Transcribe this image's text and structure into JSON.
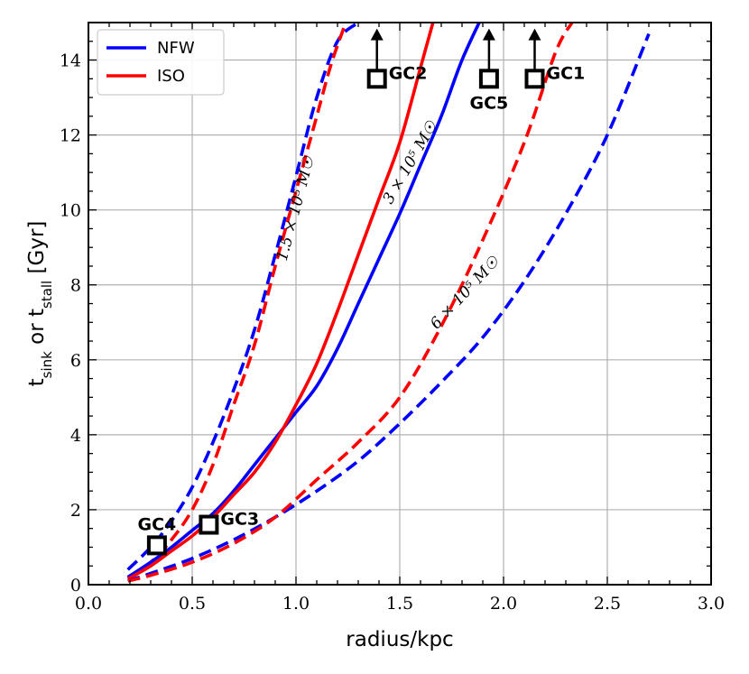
{
  "chart_data": {
    "type": "line",
    "xlabel": "radius/kpc",
    "ylabel_main": "t",
    "ylabel_sub1": "sink",
    "ylabel_mid": " or t",
    "ylabel_sub2": "stall",
    "ylabel_unit": " [Gyr]",
    "xlim": [
      0.0,
      3.0
    ],
    "ylim": [
      0,
      15
    ],
    "xticks": [
      "0.0",
      "0.5",
      "1.0",
      "1.5",
      "2.0",
      "2.5",
      "3.0"
    ],
    "yticks": [
      "0",
      "2",
      "4",
      "6",
      "8",
      "10",
      "12",
      "14"
    ],
    "grid": true,
    "legend": {
      "position": "top-left",
      "entries": [
        {
          "name": "NFW",
          "color": "#0000ff"
        },
        {
          "name": "ISO",
          "color": "#ff0000"
        }
      ]
    },
    "series": [
      {
        "name": "NFW 1.5e5 Msun",
        "model": "NFW",
        "mass": "1.5e5",
        "style": "dashed",
        "color": "#0000ff",
        "x": [
          0.19,
          0.3,
          0.4,
          0.5,
          0.6,
          0.7,
          0.8,
          0.9,
          1.0,
          1.1,
          1.2,
          1.3
        ],
        "y": [
          0.4,
          1.0,
          1.7,
          2.6,
          3.8,
          5.2,
          6.8,
          8.8,
          10.9,
          13.0,
          14.5,
          15.0
        ]
      },
      {
        "name": "ISO 1.5e5 Msun",
        "model": "ISO",
        "mass": "1.5e5",
        "style": "dashed",
        "color": "#ff0000",
        "x": [
          0.19,
          0.3,
          0.4,
          0.5,
          0.6,
          0.7,
          0.8,
          0.9,
          1.0,
          1.1,
          1.17,
          1.24
        ],
        "y": [
          0.2,
          0.6,
          1.2,
          2.0,
          3.2,
          4.8,
          6.4,
          8.5,
          10.5,
          12.5,
          13.9,
          15.0
        ]
      },
      {
        "name": "NFW 3e5 Msun",
        "model": "NFW",
        "mass": "3e5",
        "style": "solid",
        "color": "#0000ff",
        "x": [
          0.19,
          0.3,
          0.4,
          0.5,
          0.6,
          0.7,
          0.8,
          0.9,
          1.0,
          1.1,
          1.2,
          1.3,
          1.4,
          1.5,
          1.6,
          1.7,
          1.8,
          1.9
        ],
        "y": [
          0.2,
          0.6,
          1.0,
          1.45,
          1.9,
          2.5,
          3.2,
          3.9,
          4.6,
          5.3,
          6.3,
          7.5,
          8.7,
          9.9,
          11.2,
          12.5,
          14.0,
          15.2
        ]
      },
      {
        "name": "ISO 3e5 Msun",
        "model": "ISO",
        "mass": "3e5",
        "style": "solid",
        "color": "#ff0000",
        "x": [
          0.19,
          0.3,
          0.4,
          0.5,
          0.6,
          0.7,
          0.8,
          0.9,
          1.0,
          1.1,
          1.2,
          1.3,
          1.4,
          1.5,
          1.6,
          1.66
        ],
        "y": [
          0.15,
          0.5,
          0.9,
          1.3,
          1.8,
          2.4,
          3.0,
          3.8,
          4.8,
          5.9,
          7.3,
          8.8,
          10.3,
          11.8,
          13.8,
          15.0
        ]
      },
      {
        "name": "NFW 6e5 Msun",
        "model": "NFW",
        "mass": "6e5",
        "style": "dashed",
        "color": "#0000ff",
        "x": [
          0.19,
          0.3,
          0.5,
          0.7,
          0.9,
          1.1,
          1.3,
          1.5,
          1.7,
          1.9,
          2.1,
          2.3,
          2.5,
          2.7
        ],
        "y": [
          0.1,
          0.3,
          0.7,
          1.2,
          1.8,
          2.5,
          3.3,
          4.3,
          5.4,
          6.6,
          8.1,
          9.9,
          12.0,
          14.7
        ]
      },
      {
        "name": "ISO 6e5 Msun",
        "model": "ISO",
        "mass": "6e5",
        "style": "dashed",
        "color": "#ff0000",
        "x": [
          0.19,
          0.3,
          0.5,
          0.7,
          0.9,
          1.1,
          1.3,
          1.5,
          1.7,
          1.9,
          2.1,
          2.25,
          2.33
        ],
        "y": [
          0.1,
          0.25,
          0.6,
          1.1,
          1.8,
          2.8,
          3.8,
          5.0,
          6.9,
          9.2,
          11.8,
          14.2,
          15.0
        ]
      }
    ],
    "annotations": [
      {
        "id": "m15",
        "text": "1.5 × 10⁵ M☉",
        "x": 1.02,
        "y": 10.0,
        "angle": -75
      },
      {
        "id": "m3",
        "text": "3 × 10⁵ M☉",
        "x": 1.57,
        "y": 11.2,
        "angle": -60
      },
      {
        "id": "m6",
        "text": "6 × 10⁵ M☉",
        "x": 1.83,
        "y": 7.7,
        "angle": -47
      }
    ],
    "globular_clusters": [
      {
        "name": "GC1",
        "x": 2.15,
        "y": 13.5,
        "lower_limit": true,
        "label_pos": "right"
      },
      {
        "name": "GC2",
        "x": 1.39,
        "y": 13.5,
        "lower_limit": true,
        "label_pos": "right"
      },
      {
        "name": "GC3",
        "x": 0.58,
        "y": 1.6,
        "lower_limit": false,
        "label_pos": "right"
      },
      {
        "name": "GC4",
        "x": 0.33,
        "y": 1.05,
        "lower_limit": false,
        "label_pos": "above"
      },
      {
        "name": "GC5",
        "x": 1.93,
        "y": 13.5,
        "lower_limit": true,
        "label_pos": "below"
      }
    ]
  }
}
